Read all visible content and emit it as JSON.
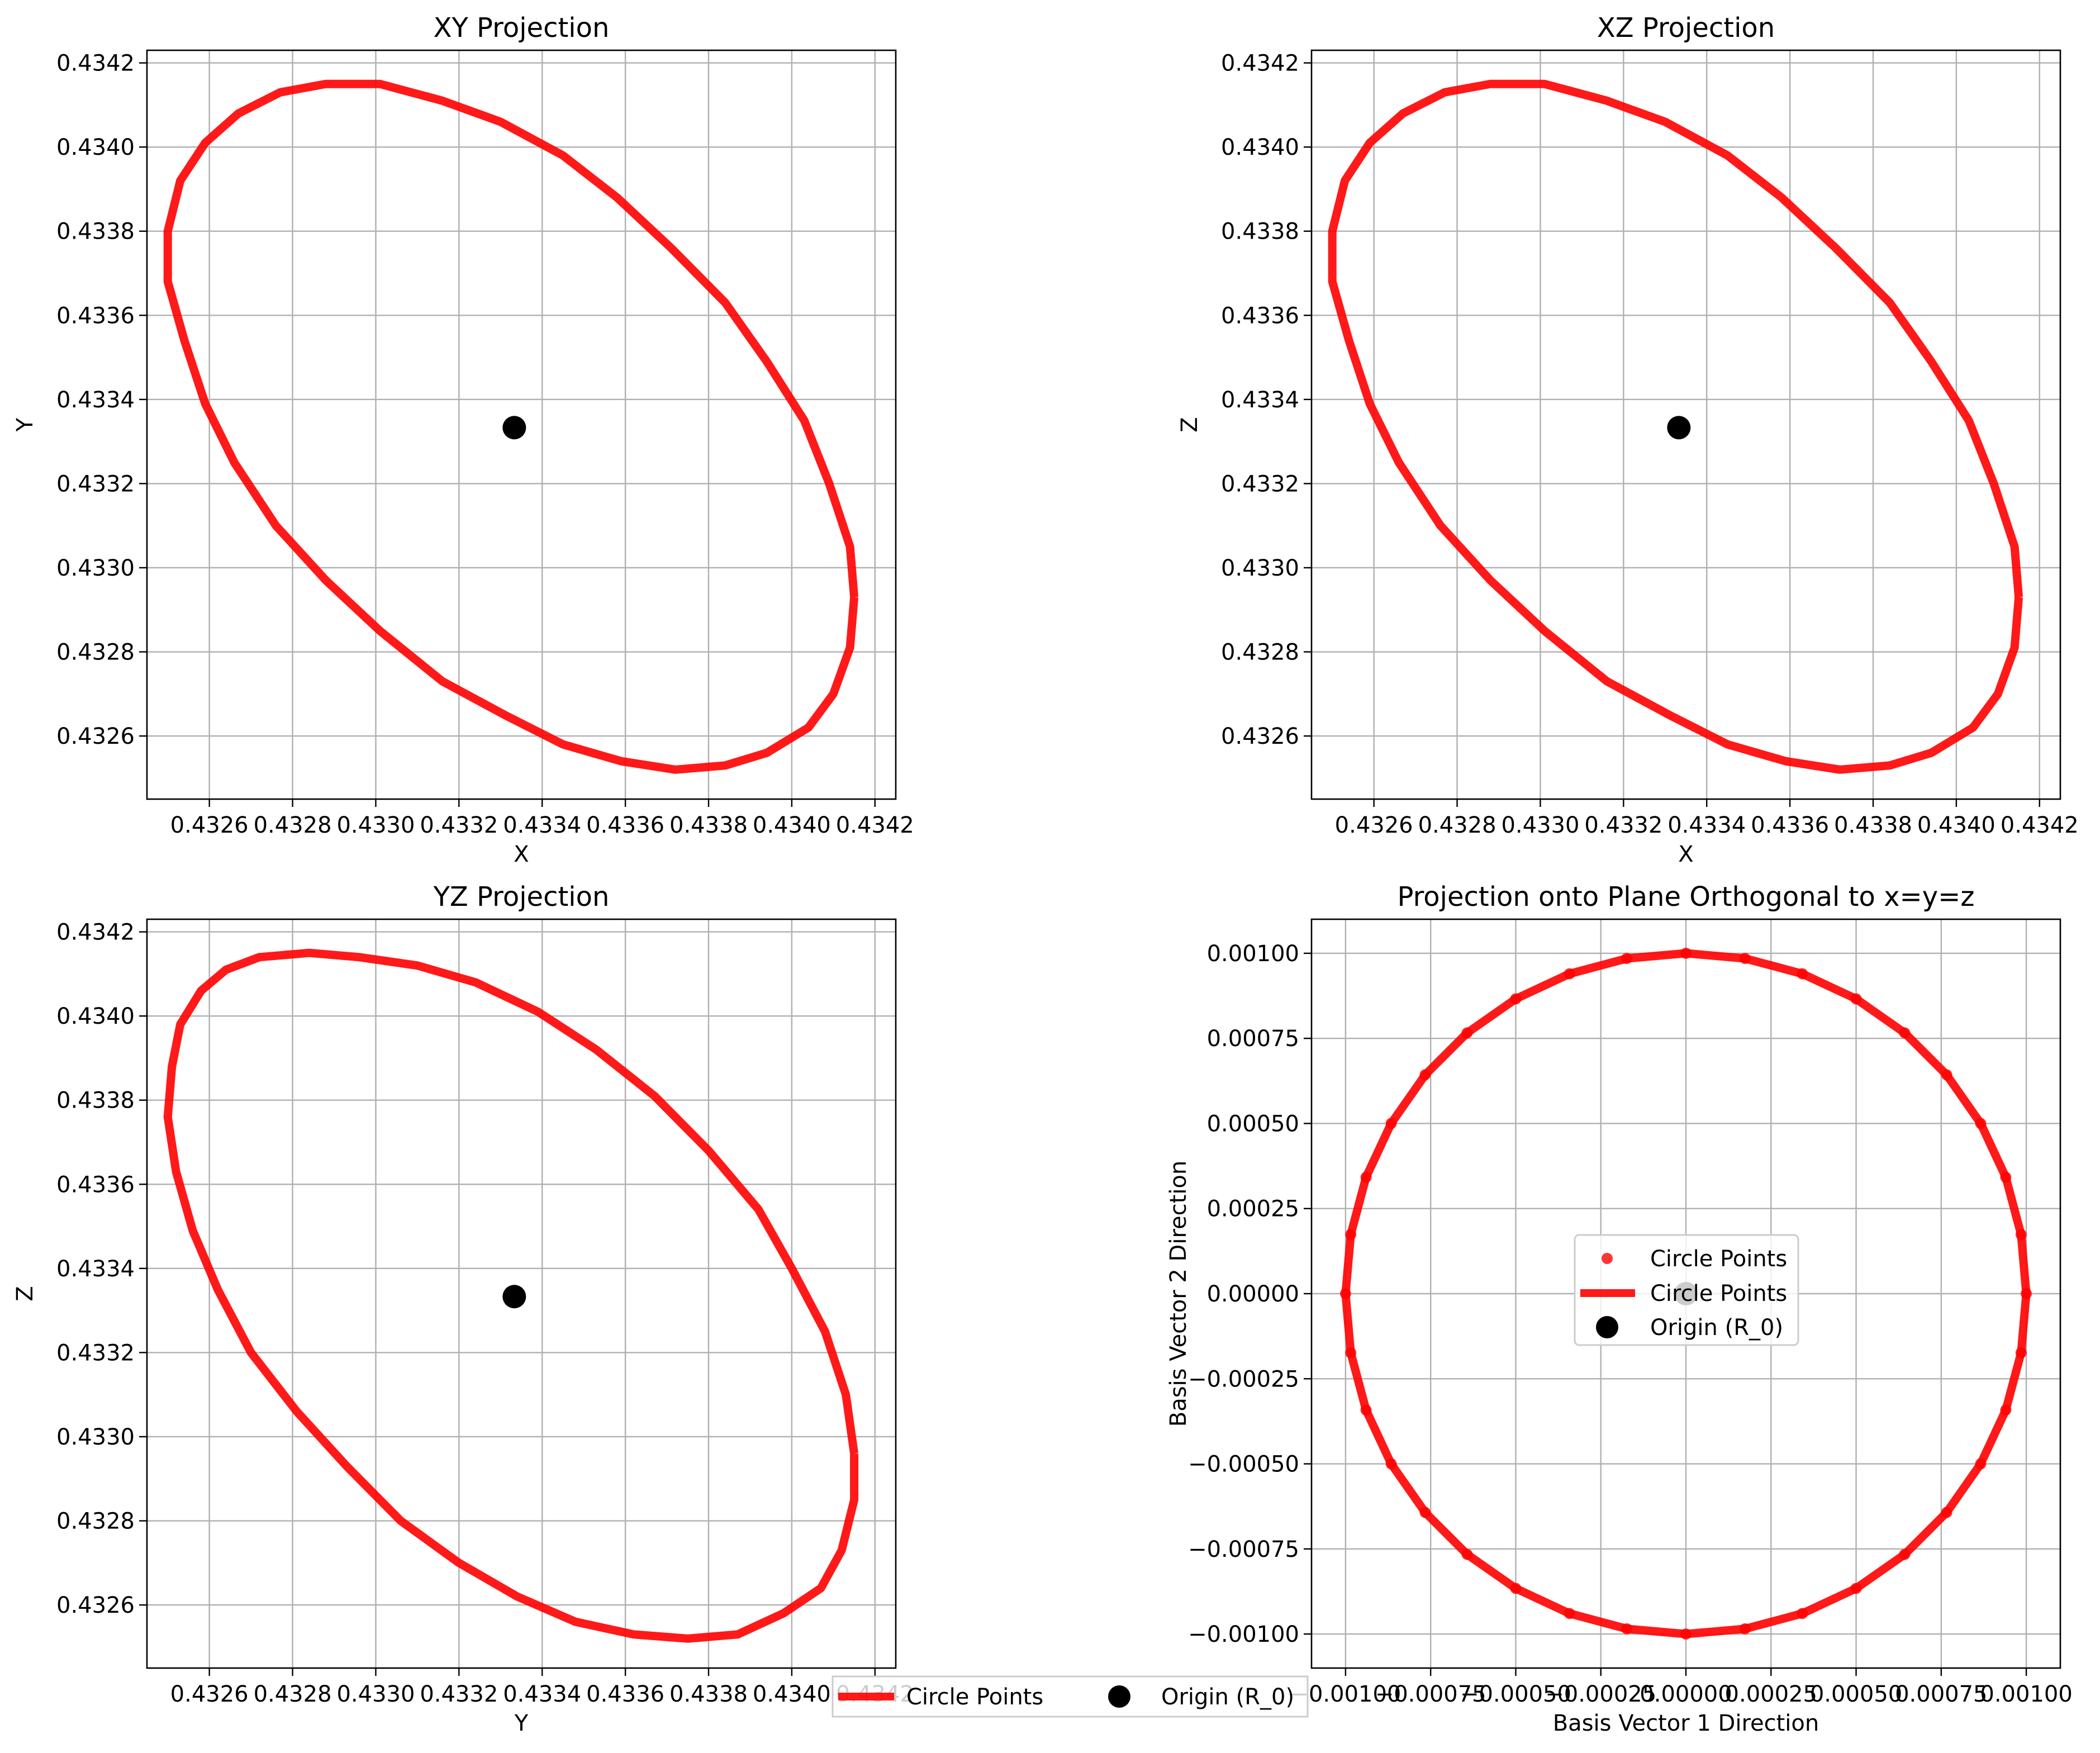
{
  "colors": {
    "curve": "#ff0000",
    "point": "#ff0000",
    "origin": "#000000",
    "grid": "#b0b0b0",
    "axes": "#000000"
  },
  "chart_data": [
    {
      "type": "line",
      "title": "XY Projection",
      "xlabel": "X",
      "ylabel": "Y",
      "xlim": [
        0.43245,
        0.43425
      ],
      "ylim": [
        0.43245,
        0.43423
      ],
      "xticks": [
        0.4326,
        0.4328,
        0.433,
        0.4332,
        0.4334,
        0.4336,
        0.4338,
        0.434,
        0.4342
      ],
      "yticks": [
        0.4326,
        0.4328,
        0.433,
        0.4332,
        0.4334,
        0.4336,
        0.4338,
        0.434,
        0.4342
      ],
      "tick_labels_x": [
        "0.4326",
        "0.4328",
        "0.4330",
        "0.4332",
        "0.4334",
        "0.4336",
        "0.4338",
        "0.4340",
        "0.4342"
      ],
      "tick_labels_y": [
        "0.4326",
        "0.4328",
        "0.4330",
        "0.4332",
        "0.4334",
        "0.4336",
        "0.4338",
        "0.4340",
        "0.4342"
      ],
      "grid": true,
      "series": [
        {
          "name": "Circle Points",
          "style": "line",
          "x": [
            0.43415,
            0.43414,
            0.4341,
            0.43404,
            0.43394,
            0.43384,
            0.43372,
            0.43359,
            0.43345,
            0.43331,
            0.43316,
            0.43301,
            0.43288,
            0.43276,
            0.43266,
            0.43259,
            0.43254,
            0.4325,
            0.4325,
            0.43253,
            0.43259,
            0.43267,
            0.43277,
            0.43288,
            0.43301,
            0.43316,
            0.4333,
            0.43345,
            0.43358,
            0.43371,
            0.43384,
            0.43394,
            0.43403,
            0.43409,
            0.43414,
            0.43415
          ],
          "y": [
            0.43293,
            0.43281,
            0.4327,
            0.43262,
            0.43256,
            0.43253,
            0.43252,
            0.43254,
            0.43258,
            0.43265,
            0.43273,
            0.43285,
            0.43297,
            0.4331,
            0.43325,
            0.43339,
            0.43354,
            0.43368,
            0.4338,
            0.43392,
            0.43401,
            0.43408,
            0.43413,
            0.43415,
            0.43415,
            0.43411,
            0.43406,
            0.43398,
            0.43388,
            0.43376,
            0.43363,
            0.43349,
            0.43335,
            0.4332,
            0.43305,
            0.43293
          ]
        },
        {
          "name": "Origin (R_0)",
          "style": "point",
          "x": [
            0.433333
          ],
          "y": [
            0.433333
          ]
        }
      ]
    },
    {
      "type": "line",
      "title": "XZ Projection",
      "xlabel": "X",
      "ylabel": "Z",
      "xlim": [
        0.43245,
        0.43425
      ],
      "ylim": [
        0.43245,
        0.43423
      ],
      "xticks": [
        0.4326,
        0.4328,
        0.433,
        0.4332,
        0.4334,
        0.4336,
        0.4338,
        0.434,
        0.4342
      ],
      "yticks": [
        0.4326,
        0.4328,
        0.433,
        0.4332,
        0.4334,
        0.4336,
        0.4338,
        0.434,
        0.4342
      ],
      "tick_labels_x": [
        "0.4326",
        "0.4328",
        "0.4330",
        "0.4332",
        "0.4334",
        "0.4336",
        "0.4338",
        "0.4340",
        "0.4342"
      ],
      "tick_labels_y": [
        "0.4326",
        "0.4328",
        "0.4330",
        "0.4332",
        "0.4334",
        "0.4336",
        "0.4338",
        "0.4340",
        "0.4342"
      ],
      "grid": true,
      "series": [
        {
          "name": "Circle Points",
          "style": "line",
          "x": [
            0.43415,
            0.43414,
            0.4341,
            0.43404,
            0.43394,
            0.43384,
            0.43372,
            0.43359,
            0.43345,
            0.43331,
            0.43316,
            0.43301,
            0.43288,
            0.43276,
            0.43266,
            0.43259,
            0.43254,
            0.4325,
            0.4325,
            0.43253,
            0.43259,
            0.43267,
            0.43277,
            0.43288,
            0.43301,
            0.43316,
            0.4333,
            0.43345,
            0.43358,
            0.43371,
            0.43384,
            0.43394,
            0.43403,
            0.43409,
            0.43414,
            0.43415
          ],
          "y": [
            0.43293,
            0.43281,
            0.4327,
            0.43262,
            0.43256,
            0.43253,
            0.43252,
            0.43254,
            0.43258,
            0.43265,
            0.43273,
            0.43285,
            0.43297,
            0.4331,
            0.43325,
            0.43339,
            0.43354,
            0.43368,
            0.4338,
            0.43392,
            0.43401,
            0.43408,
            0.43413,
            0.43415,
            0.43415,
            0.43411,
            0.43406,
            0.43398,
            0.43388,
            0.43376,
            0.43363,
            0.43349,
            0.43335,
            0.4332,
            0.43305,
            0.43293
          ]
        },
        {
          "name": "Origin (R_0)",
          "style": "point",
          "x": [
            0.433333
          ],
          "y": [
            0.433333
          ]
        }
      ]
    },
    {
      "type": "line",
      "title": "YZ Projection",
      "xlabel": "Y",
      "ylabel": "Z",
      "xlim": [
        0.43245,
        0.43425
      ],
      "ylim": [
        0.43245,
        0.43423
      ],
      "xticks": [
        0.4326,
        0.4328,
        0.433,
        0.4332,
        0.4334,
        0.4336,
        0.4338,
        0.434,
        0.4342
      ],
      "yticks": [
        0.4326,
        0.4328,
        0.433,
        0.4332,
        0.4334,
        0.4336,
        0.4338,
        0.434,
        0.4342
      ],
      "tick_labels_x": [
        "0.4326",
        "0.4328",
        "0.4330",
        "0.4332",
        "0.4334",
        "0.4336",
        "0.4338",
        "0.4340",
        "0.4342"
      ],
      "tick_labels_y": [
        "0.4326",
        "0.4328",
        "0.4330",
        "0.4332",
        "0.4334",
        "0.4336",
        "0.4338",
        "0.4340",
        "0.4342"
      ],
      "grid": true,
      "series": [
        {
          "name": "Circle Points",
          "style": "line",
          "x": [
            0.43415,
            0.43415,
            0.43412,
            0.43407,
            0.43398,
            0.43387,
            0.43375,
            0.43362,
            0.43348,
            0.43334,
            0.4332,
            0.43306,
            0.43293,
            0.43281,
            0.4327,
            0.43262,
            0.43256,
            0.43252,
            0.4325,
            0.43251,
            0.43253,
            0.43258,
            0.43264,
            0.43272,
            0.43284,
            0.43296,
            0.4331,
            0.43324,
            0.43339,
            0.43353,
            0.43367,
            0.4338,
            0.43392,
            0.434,
            0.43408,
            0.43413,
            0.43415
          ],
          "y": [
            0.43296,
            0.43285,
            0.43273,
            0.43264,
            0.43258,
            0.43253,
            0.43252,
            0.43253,
            0.43256,
            0.43262,
            0.4327,
            0.4328,
            0.43293,
            0.43306,
            0.4332,
            0.43335,
            0.43349,
            0.43363,
            0.43376,
            0.43388,
            0.43398,
            0.43406,
            0.43411,
            0.43414,
            0.43415,
            0.43414,
            0.43412,
            0.43408,
            0.43401,
            0.43392,
            0.43381,
            0.43368,
            0.43354,
            0.4334,
            0.43325,
            0.4331,
            0.43296
          ]
        },
        {
          "name": "Origin (R_0)",
          "style": "point",
          "x": [
            0.433333
          ],
          "y": [
            0.433333
          ]
        }
      ]
    },
    {
      "type": "scatter",
      "title": "Projection onto Plane Orthogonal to x=y=z",
      "xlabel": "Basis Vector 1 Direction",
      "ylabel": "Basis Vector 2 Direction",
      "xlim": [
        -0.0011,
        0.0011
      ],
      "ylim": [
        -0.0011,
        0.0011
      ],
      "xticks": [
        -0.001,
        -0.00075,
        -0.0005,
        -0.00025,
        0,
        0.00025,
        0.0005,
        0.00075,
        0.001
      ],
      "yticks": [
        -0.001,
        -0.00075,
        -0.0005,
        -0.00025,
        0,
        0.00025,
        0.0005,
        0.00075,
        0.001
      ],
      "tick_labels_x": [
        "−0.00100",
        "−0.00075",
        "−0.00050",
        "−0.00025",
        "0.00000",
        "0.00025",
        "0.00050",
        "0.00075",
        "0.00100"
      ],
      "tick_labels_y": [
        "−0.00100",
        "−0.00075",
        "−0.00050",
        "−0.00025",
        "0.00000",
        "0.00025",
        "0.00050",
        "0.00075",
        "0.00100"
      ],
      "grid": true,
      "legend_position": "center",
      "series": [
        {
          "name": "Circle Points",
          "style": "scatter",
          "points_on_circle": 36,
          "radius": 0.001
        },
        {
          "name": "Circle Points",
          "style": "line",
          "points_on_circle": 36,
          "radius": 0.001
        },
        {
          "name": "Origin (R_0)",
          "style": "point",
          "x": [
            0
          ],
          "y": [
            0
          ]
        }
      ],
      "legend": [
        "Circle Points",
        "Circle Points",
        "Origin (R_0)"
      ]
    }
  ],
  "figure_legend": {
    "position": "bottom-center",
    "entries": [
      "Circle Points",
      "Origin (R_0)"
    ]
  }
}
